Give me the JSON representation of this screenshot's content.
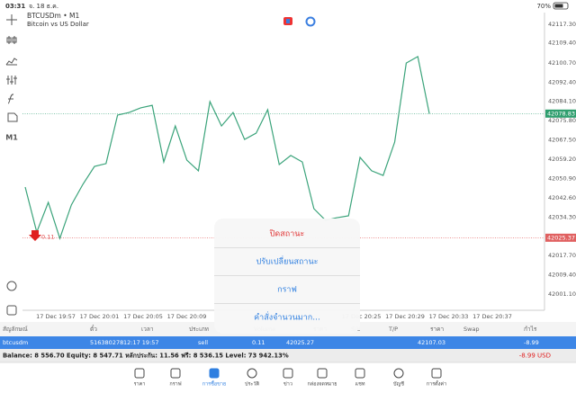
{
  "status_bar": {
    "time": "03:31",
    "date": "จ. 18 ธ.ค.",
    "battery": "70%"
  },
  "chart": {
    "symbol": "BTCUSDm • M1",
    "description": "Bitcoin vs US Dollar",
    "timeframe": "M1",
    "price_ticks": [
      "42117.30",
      "42109.40",
      "42100.70",
      "42092.40",
      "42084.10",
      "42075.80",
      "42067.50",
      "42059.20",
      "42050.90",
      "42042.60",
      "42034.30",
      "42017.70",
      "42009.40",
      "42001.10"
    ],
    "current_price": "42078.83",
    "open_price": "42025.37",
    "order_volume": "0.11",
    "time_labels": [
      "17 Dec 19:57",
      "17 Dec 20:01",
      "17 Dec 20:05",
      "17 Dec 20:09",
      null,
      null,
      null,
      "17 Dec 20:25",
      "17 Dec 20:29",
      "17 Dec 20:33",
      "17 Dec 20:37"
    ],
    "prices": [
      42047.2,
      42027.8,
      42040.6,
      42025.1,
      42039.5,
      42048.4,
      42056.1,
      42057.3,
      42078.2,
      42079.3,
      42081.3,
      42082.4,
      42058.0,
      42073.5,
      42058.8,
      42054.2,
      42084.0,
      42073.5,
      42079.3,
      42067.7,
      42070.4,
      42080.5,
      42056.9,
      42060.8,
      42058.0,
      42037.9,
      42032.9,
      42034.0,
      42034.8,
      42060.0,
      42054.2,
      42052.2,
      42066.6,
      42100.6,
      42103.4,
      42078.83
    ]
  },
  "context_menu": [
    "ปิดสถานะ",
    "ปรับเปลี่ยนสถานะ",
    "กราฟ",
    "คำสั่งจำนวนมาก..."
  ],
  "table": {
    "headers": [
      "สัญลักษณ์",
      "ตั๋ว",
      "เวลา",
      "ประเภท",
      "Volume",
      "ราคา",
      "S/L",
      "T/P",
      "ราคา",
      "Swap",
      "กำไร"
    ],
    "row": [
      "btcusdm",
      "516380278",
      "12:17 19:57",
      "sell",
      "0.11",
      "42025.27",
      "",
      "",
      "42107.03",
      "",
      "-8.99"
    ]
  },
  "summary": {
    "text": "Balance: 8 556.70 Equity: 8 547.71 หลักประกัน: 11.56 ฟรี: 8 536.15 Level: 73 942.13%",
    "profit": "-8.99 USD"
  },
  "nav": [
    "ราคา",
    "กราฟ",
    "การซื้อขาย",
    "ประวัติ",
    "ข่าว",
    "กล่องจดหมาย",
    "แชท",
    "บัญชี",
    "การตั้งค่า"
  ]
}
